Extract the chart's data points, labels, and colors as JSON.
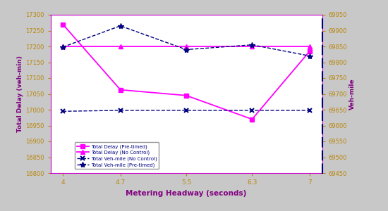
{
  "x": [
    4,
    4.7,
    5.5,
    6.3,
    7
  ],
  "total_delay_pretimed": [
    17270,
    17063,
    17045,
    16970,
    17185
  ],
  "total_delay_nocontrol": [
    17200,
    17200,
    17200,
    17200,
    17200
  ],
  "veh_nocontrol": [
    69645,
    69648,
    69648,
    69648,
    69648
  ],
  "veh_pretimed": [
    69848,
    69915,
    69840,
    69855,
    69820
  ],
  "delay_pretimed_color": "#ff00ff",
  "delay_nocontrol_color": "#ff00ff",
  "veh_nocontrol_color": "#000080",
  "veh_pretimed_color": "#000080",
  "ylabel_left": "Total Delay (veh-min)",
  "ylabel_right": "Veh-mile",
  "xlabel": "Metering Headway (seconds)",
  "ylim_left": [
    16800,
    17300
  ],
  "ylim_right": [
    69450,
    69950
  ],
  "xticks": [
    4,
    4.7,
    5.5,
    6.3,
    7
  ],
  "yticks_left": [
    16800,
    16850,
    16900,
    16950,
    17000,
    17050,
    17100,
    17150,
    17200,
    17250,
    17300
  ],
  "yticks_right": [
    69450,
    69500,
    69550,
    69600,
    69650,
    69700,
    69750,
    69800,
    69850,
    69900,
    69950
  ],
  "legend_labels": [
    "Total Delay (Pre-timed)",
    "Total Delay (No Control)",
    "Total Veh-mile (No Control)",
    "Total Veh-mile (Pre-timed)"
  ],
  "background_color": "#c8c8c8",
  "plot_bg": "#ffffff",
  "tick_color": "#b8860b",
  "label_color": "#800080",
  "spine_color": "#cc00cc"
}
